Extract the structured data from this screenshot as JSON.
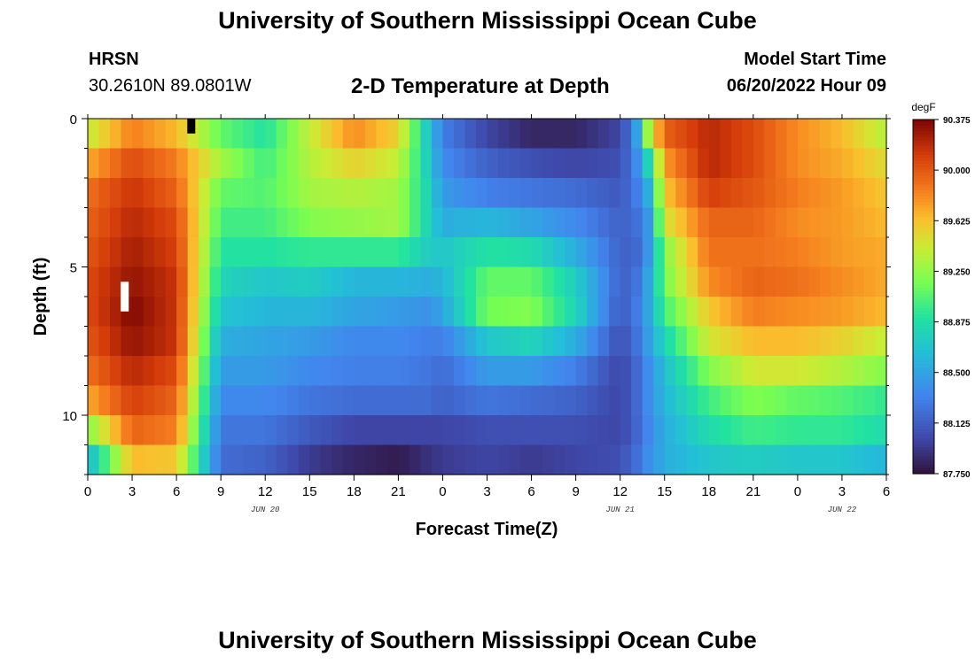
{
  "header": {
    "title": "University of Southern Mississippi Ocean Cube",
    "station": "HRSN",
    "coordinates": "30.2610N  89.0801W",
    "subtitle": "2-D Temperature at Depth",
    "model_start_label": "Model Start Time",
    "model_start_value": "06/20/2022 Hour 09"
  },
  "footer": {
    "title": "University of Southern Mississippi Ocean Cube"
  },
  "chart_data": {
    "type": "heatmap",
    "xlabel": "Forecast Time(Z)",
    "ylabel": "Depth (ft)",
    "x_hours": [
      0,
      3,
      6,
      9,
      12,
      15,
      18,
      21,
      24,
      27,
      30,
      33,
      36,
      39,
      42,
      45,
      48,
      51,
      54
    ],
    "x_tick_labels": [
      "0",
      "3",
      "6",
      "9",
      "12",
      "15",
      "18",
      "21",
      "0",
      "3",
      "6",
      "9",
      "12",
      "15",
      "18",
      "21",
      "0",
      "3",
      "6"
    ],
    "date_labels": [
      {
        "label": "JUN 20",
        "hour": 12
      },
      {
        "label": "JUN 21",
        "hour": 36
      },
      {
        "label": "JUN 22",
        "hour": 51
      }
    ],
    "xlim": [
      0,
      54
    ],
    "ylim": [
      0,
      12
    ],
    "y_tick_labels": [
      "0",
      "5",
      "10"
    ],
    "y_ticks": [
      0,
      5,
      10
    ],
    "y_minor_ticks": [
      1,
      2,
      3,
      4,
      6,
      7,
      8,
      9,
      11,
      12
    ],
    "depth_levels_ft": [
      0.5,
      1.5,
      2.5,
      3.5,
      4.5,
      5.5,
      6.5,
      7.5,
      8.5,
      9.5,
      10.5,
      11.5
    ],
    "colorbar": {
      "unit": "degF",
      "tick_values": [
        90.375,
        90.0,
        89.625,
        89.25,
        88.875,
        88.5,
        88.125,
        87.75
      ],
      "tick_labels": [
        "90.375",
        "90.000",
        "89.625",
        "89.250",
        "88.875",
        "88.500",
        "88.125",
        "87.750"
      ],
      "range": [
        87.75,
        90.375
      ]
    },
    "markers": [
      {
        "hour": 2.5,
        "depth_from": 5.5,
        "depth_to": 6.5,
        "color": "#ffffff"
      },
      {
        "hour": 7.0,
        "depth_from": 0.0,
        "depth_to": 0.5,
        "color": "#000000"
      }
    ],
    "profile_knots": [
      {
        "hour": 0,
        "temps": [
          89.4,
          89.7,
          89.9,
          89.95,
          90.0,
          90.05,
          90.05,
          90.0,
          89.9,
          89.7,
          89.2,
          88.6
        ]
      },
      {
        "hour": 3,
        "temps": [
          89.85,
          90.05,
          90.15,
          90.2,
          90.25,
          90.3,
          90.35,
          90.3,
          90.2,
          90.1,
          89.95,
          89.65
        ]
      },
      {
        "hour": 6,
        "temps": [
          89.65,
          89.85,
          89.95,
          90.05,
          90.1,
          90.15,
          90.15,
          90.15,
          90.05,
          89.95,
          89.85,
          89.6
        ]
      },
      {
        "hour": 9,
        "temps": [
          89.1,
          89.3,
          89.1,
          89.0,
          88.9,
          88.8,
          88.7,
          88.55,
          88.45,
          88.35,
          88.25,
          88.2
        ]
      },
      {
        "hour": 12,
        "temps": [
          88.9,
          89.0,
          89.05,
          89.0,
          88.9,
          88.7,
          88.6,
          88.5,
          88.45,
          88.35,
          88.25,
          88.15
        ]
      },
      {
        "hour": 15,
        "temps": [
          89.4,
          89.35,
          89.3,
          89.2,
          88.95,
          88.75,
          88.6,
          88.45,
          88.35,
          88.25,
          88.1,
          87.95
        ]
      },
      {
        "hour": 18,
        "temps": [
          89.8,
          89.55,
          89.35,
          89.25,
          88.95,
          88.6,
          88.5,
          88.35,
          88.3,
          88.2,
          88.0,
          87.85
        ]
      },
      {
        "hour": 21,
        "temps": [
          89.55,
          89.4,
          89.3,
          89.3,
          88.95,
          88.6,
          88.45,
          88.35,
          88.3,
          88.2,
          88.0,
          87.8
        ]
      },
      {
        "hour": 23,
        "temps": [
          88.7,
          88.75,
          88.8,
          88.8,
          88.75,
          88.55,
          88.4,
          88.3,
          88.25,
          88.2,
          88.0,
          87.9
        ]
      },
      {
        "hour": 24,
        "temps": [
          88.3,
          88.35,
          88.45,
          88.55,
          88.7,
          88.6,
          88.5,
          88.3,
          88.2,
          88.15,
          88.0,
          87.95
        ]
      },
      {
        "hour": 27,
        "temps": [
          88.0,
          88.15,
          88.3,
          88.6,
          88.9,
          89.1,
          89.15,
          88.7,
          88.45,
          88.25,
          88.05,
          88.0
        ]
      },
      {
        "hour": 30,
        "temps": [
          87.85,
          88.05,
          88.25,
          88.5,
          88.85,
          89.1,
          89.2,
          88.8,
          88.45,
          88.2,
          88.05,
          87.95
        ]
      },
      {
        "hour": 33,
        "temps": [
          87.85,
          88.0,
          88.2,
          88.35,
          88.55,
          88.75,
          88.8,
          88.55,
          88.3,
          88.15,
          88.05,
          88.0
        ]
      },
      {
        "hour": 36,
        "temps": [
          88.0,
          88.05,
          88.1,
          88.15,
          88.15,
          88.15,
          88.1,
          88.05,
          88.0,
          88.0,
          88.0,
          88.05
        ]
      },
      {
        "hour": 37,
        "temps": [
          88.35,
          88.3,
          88.25,
          88.2,
          88.15,
          88.2,
          88.25,
          88.2,
          88.15,
          88.15,
          88.15,
          88.2
        ]
      },
      {
        "hour": 38,
        "temps": [
          89.4,
          88.85,
          88.6,
          88.45,
          88.45,
          88.55,
          88.55,
          88.5,
          88.4,
          88.4,
          88.35,
          88.4
        ]
      },
      {
        "hour": 39,
        "temps": [
          89.95,
          89.75,
          89.6,
          89.45,
          89.2,
          89.15,
          89.0,
          88.8,
          88.65,
          88.6,
          88.55,
          88.55
        ]
      },
      {
        "hour": 42,
        "temps": [
          90.2,
          90.2,
          90.1,
          89.95,
          89.9,
          89.8,
          89.6,
          89.45,
          89.2,
          89.0,
          88.85,
          88.7
        ]
      },
      {
        "hour": 45,
        "temps": [
          90.05,
          90.05,
          90.0,
          89.95,
          89.9,
          89.95,
          89.85,
          89.65,
          89.45,
          89.2,
          89.0,
          88.75
        ]
      },
      {
        "hour": 48,
        "temps": [
          89.8,
          89.8,
          89.85,
          89.8,
          89.85,
          89.9,
          89.8,
          89.65,
          89.45,
          89.1,
          88.95,
          88.7
        ]
      },
      {
        "hour": 51,
        "temps": [
          89.65,
          89.7,
          89.75,
          89.75,
          89.75,
          89.8,
          89.75,
          89.55,
          89.35,
          89.05,
          88.95,
          88.7
        ]
      },
      {
        "hour": 54,
        "temps": [
          89.35,
          89.5,
          89.6,
          89.65,
          89.7,
          89.7,
          89.65,
          89.4,
          89.2,
          88.95,
          88.85,
          88.6
        ]
      }
    ]
  }
}
